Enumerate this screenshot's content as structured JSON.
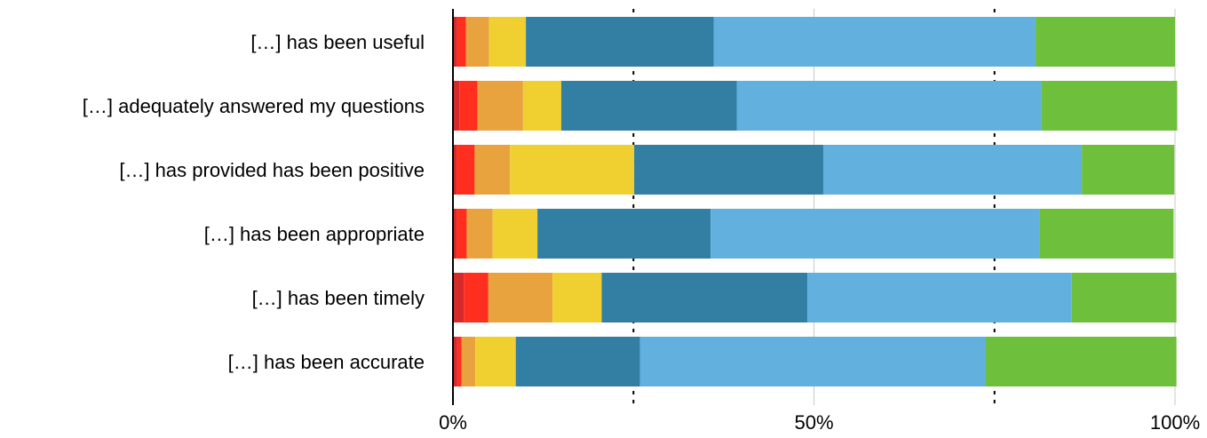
{
  "chart_data": {
    "type": "bar",
    "stacked": true,
    "orientation": "horizontal",
    "percent_scale": true,
    "categories": [
      "[…] has been useful",
      "[…] adequately answered my questions",
      "[…] has provided has been positive",
      "[…] has been appropriate",
      "[…] has been timely",
      "[…] has been accurate"
    ],
    "series": [
      {
        "color": "#d42a2a",
        "values": [
          0.6,
          0.9,
          0.5,
          0.5,
          1.5,
          0.6
        ]
      },
      {
        "color": "#ff2e1f",
        "values": [
          1.2,
          2.5,
          2.5,
          1.4,
          3.4,
          0.6
        ]
      },
      {
        "color": "#e8a23e",
        "values": [
          3.2,
          6.3,
          4.9,
          3.6,
          8.9,
          1.9
        ]
      },
      {
        "color": "#f0d030",
        "values": [
          5.1,
          5.3,
          17.2,
          6.2,
          6.8,
          5.6
        ]
      },
      {
        "color": "#337ea3",
        "values": [
          26.0,
          24.3,
          26.2,
          24.0,
          28.5,
          17.2
        ]
      },
      {
        "color": "#62b0de",
        "values": [
          44.6,
          42.2,
          35.8,
          45.5,
          36.6,
          47.9
        ]
      },
      {
        "color": "#6ebf3b",
        "values": [
          19.3,
          18.8,
          12.8,
          18.6,
          14.5,
          26.4
        ]
      }
    ],
    "xlim": [
      0,
      100
    ],
    "xticks": [
      "0%",
      "50%",
      "100%"
    ],
    "grid": {
      "solid_at": [
        50,
        100
      ],
      "dotted_at": [
        25,
        75
      ]
    },
    "xlabel": "",
    "ylabel": "",
    "legend": "none"
  }
}
